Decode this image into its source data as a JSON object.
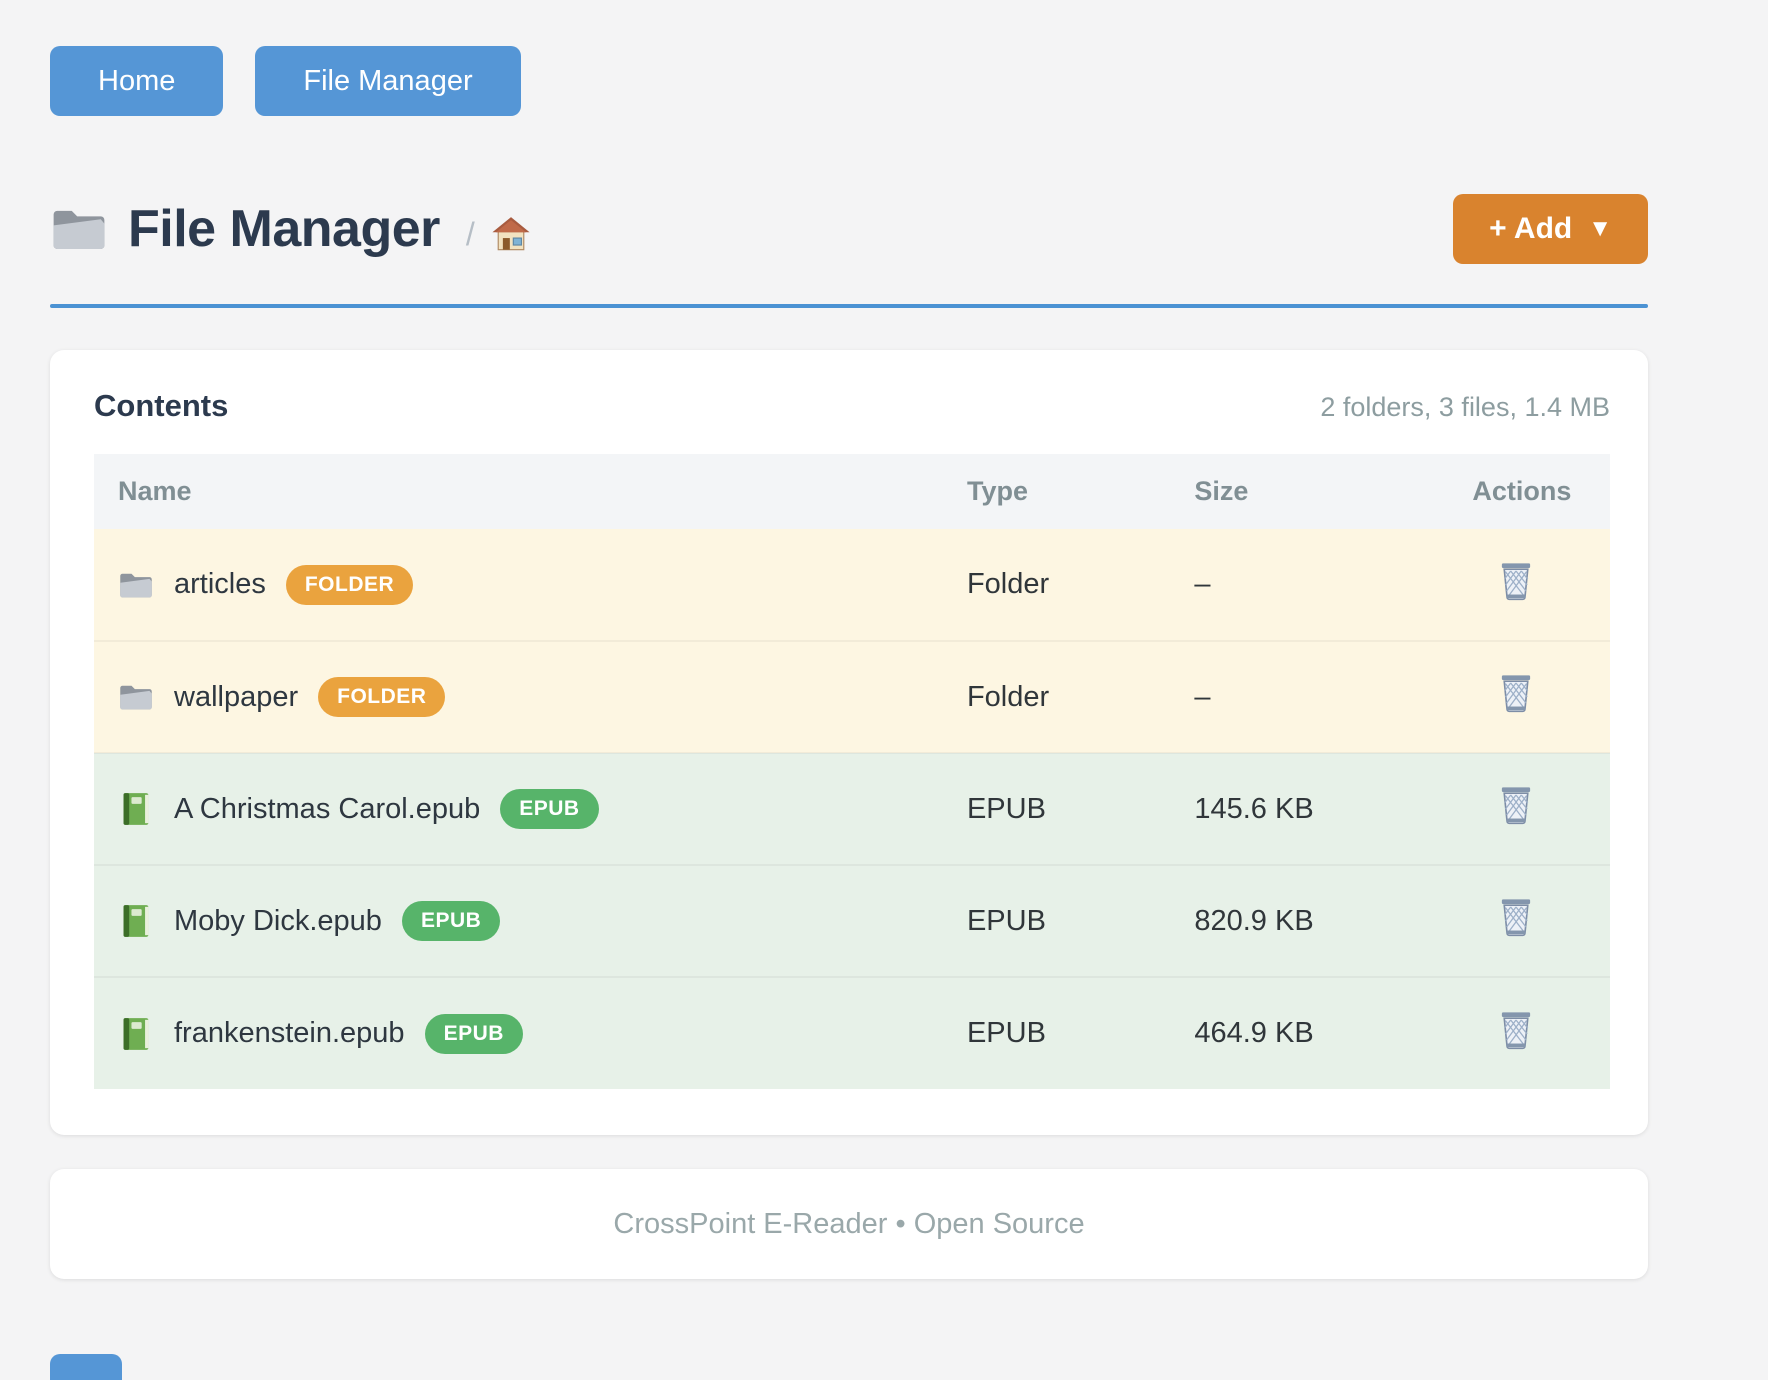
{
  "nav": {
    "home_label": "Home",
    "file_manager_label": "File Manager"
  },
  "header": {
    "title": "File Manager",
    "title_icon": "folder-icon",
    "breadcrumb_separator": "/",
    "breadcrumb_home_icon": "house-icon",
    "add_button_label": "+ Add",
    "add_button_caret": "▼"
  },
  "contents_card": {
    "title": "Contents",
    "summary": "2 folders, 3 files, 1.4 MB",
    "table": {
      "columns": [
        "Name",
        "Type",
        "Size",
        "Actions"
      ],
      "rows": [
        {
          "name": "articles",
          "badge": "FOLDER",
          "kind": "folder",
          "type": "Folder",
          "size": "–"
        },
        {
          "name": "wallpaper",
          "badge": "FOLDER",
          "kind": "folder",
          "type": "Folder",
          "size": "–"
        },
        {
          "name": "A Christmas Carol.epub",
          "badge": "EPUB",
          "kind": "epub",
          "type": "EPUB",
          "size": "145.6 KB"
        },
        {
          "name": "Moby Dick.epub",
          "badge": "EPUB",
          "kind": "epub",
          "type": "EPUB",
          "size": "820.9 KB"
        },
        {
          "name": "frankenstein.epub",
          "badge": "EPUB",
          "kind": "epub",
          "type": "EPUB",
          "size": "464.9 KB"
        }
      ],
      "row_action_icon": "trash-icon"
    }
  },
  "footer": {
    "text": "CrossPoint E-Reader • Open Source"
  },
  "colors": {
    "accent_blue": "#5596d6",
    "rule_blue": "#4b92d3",
    "add_orange": "#d9832e",
    "badge_orange": "#eaa33e",
    "badge_green": "#57b46a",
    "folder_row_bg": "#fdf6e2",
    "epub_row_bg": "#e7f1e8",
    "heading_dark": "#2c3a4e"
  }
}
